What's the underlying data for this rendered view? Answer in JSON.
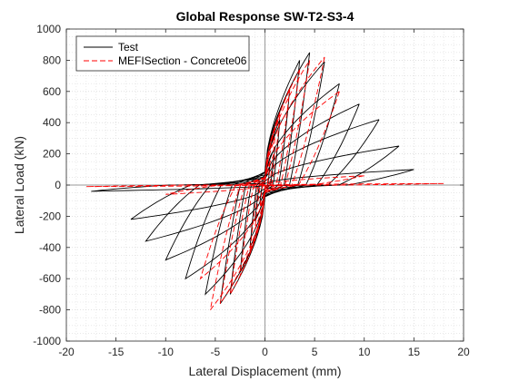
{
  "chart_data": {
    "type": "line",
    "title": "Global Response SW-T2-S3-4",
    "xlabel": "Lateral Displacement (mm)",
    "ylabel": "Lateral Load (kN)",
    "xlim": [
      -20,
      20
    ],
    "ylim": [
      -1000,
      1000
    ],
    "xticks": [
      -20,
      -15,
      -10,
      -5,
      0,
      5,
      10,
      15,
      20
    ],
    "yticks": [
      -1000,
      -800,
      -600,
      -400,
      -200,
      0,
      200,
      400,
      600,
      800,
      1000
    ],
    "grid": "minor dotted",
    "legend_position": "top-left",
    "zero_lines": true,
    "series": [
      {
        "name": "Test",
        "color": "#000000",
        "dash": "solid",
        "cycles": [
          {
            "dpos": 0.5,
            "fpos": 120,
            "dneg": -0.5,
            "fneg": -110
          },
          {
            "dpos": 1.0,
            "fpos": 240,
            "dneg": -1.0,
            "fneg": -230
          },
          {
            "dpos": 1.5,
            "fpos": 420,
            "dneg": -1.5,
            "fneg": -400
          },
          {
            "dpos": 2.5,
            "fpos": 620,
            "dneg": -2.5,
            "fneg": -560
          },
          {
            "dpos": 3.5,
            "fpos": 800,
            "dneg": -3.5,
            "fneg": -700
          },
          {
            "dpos": 4.5,
            "fpos": 850,
            "dneg": -4.5,
            "fneg": -760
          },
          {
            "dpos": 6.0,
            "fpos": 790,
            "dneg": -6.0,
            "fneg": -700
          },
          {
            "dpos": 7.5,
            "fpos": 650,
            "dneg": -8.0,
            "fneg": -600
          },
          {
            "dpos": 9.5,
            "fpos": 520,
            "dneg": -10.0,
            "fneg": -480
          },
          {
            "dpos": 11.5,
            "fpos": 420,
            "dneg": -12.0,
            "fneg": -360
          },
          {
            "dpos": 13.5,
            "fpos": 250,
            "dneg": -13.5,
            "fneg": -220
          },
          {
            "dpos": 15.0,
            "fpos": 100,
            "dneg": -17.5,
            "fneg": -40
          }
        ]
      },
      {
        "name": "MEFISection - Concrete06",
        "color": "#ff0000",
        "dash": "dashed",
        "cycles": [
          {
            "dpos": 0.5,
            "fpos": 150,
            "dneg": -0.5,
            "fneg": -140
          },
          {
            "dpos": 1.0,
            "fpos": 300,
            "dneg": -1.0,
            "fneg": -280
          },
          {
            "dpos": 1.5,
            "fpos": 450,
            "dneg": -1.5,
            "fneg": -430
          },
          {
            "dpos": 2.5,
            "fpos": 620,
            "dneg": -2.5,
            "fneg": -580
          },
          {
            "dpos": 3.5,
            "fpos": 740,
            "dneg": -3.5,
            "fneg": -700
          },
          {
            "dpos": 4.5,
            "fpos": 800,
            "dneg": -4.5,
            "fneg": -760
          },
          {
            "dpos": 6.0,
            "fpos": 820,
            "dneg": -5.5,
            "fneg": -800
          },
          {
            "dpos": 7.5,
            "fpos": 600,
            "dneg": -6.5,
            "fneg": -600
          },
          {
            "dpos": 10.0,
            "fpos": 60,
            "dneg": -10.0,
            "fneg": -60
          },
          {
            "dpos": 18.0,
            "fpos": 10,
            "dneg": -18.0,
            "fneg": -10
          }
        ]
      }
    ]
  }
}
